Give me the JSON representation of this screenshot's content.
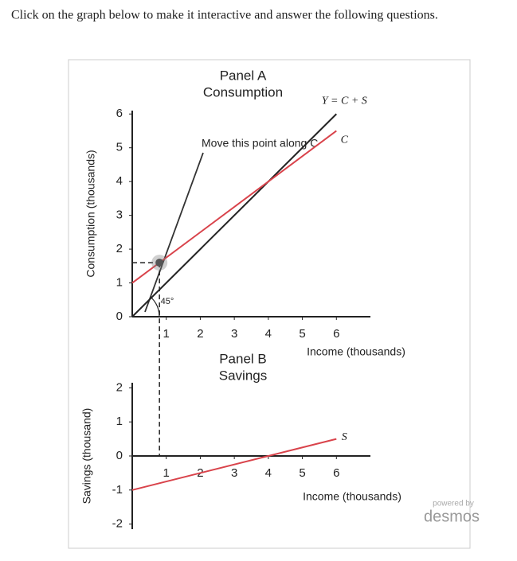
{
  "instruction": "Click on the graph below to make it interactive and answer the following questions.",
  "chart_data": [
    {
      "type": "line",
      "title": "Panel A",
      "subtitle": "Consumption",
      "x_label": "Income (thousands)",
      "y_label": "Consumption (thousands)",
      "xlim": [
        0,
        7
      ],
      "ylim": [
        0,
        6.1
      ],
      "xticks": [
        1,
        2,
        3,
        4,
        5,
        6
      ],
      "yticks": [
        0,
        1,
        2,
        3,
        4,
        5,
        6
      ],
      "x": [
        0,
        6
      ],
      "series": [
        {
          "name": "Y = C + S",
          "color": "#222222",
          "values": [
            0,
            6
          ]
        },
        {
          "name": "C",
          "color": "#d9434b",
          "values": [
            1,
            5.5
          ]
        }
      ],
      "point": {
        "x": 0.8,
        "y": 1.6
      },
      "annotation": "Move this point along C",
      "angle_label": "45°"
    },
    {
      "type": "line",
      "title": "Panel B",
      "subtitle": "Savings",
      "x_label": "Income (thousands)",
      "y_label": "Savings (thousand)",
      "xlim": [
        0,
        7
      ],
      "ylim": [
        -2.15,
        2.15
      ],
      "xticks": [
        1,
        2,
        3,
        4,
        5,
        6
      ],
      "yticks": [
        -2,
        -1,
        0,
        1,
        2
      ],
      "x": [
        0,
        6
      ],
      "series": [
        {
          "name": "S",
          "color": "#d9434b",
          "values": [
            -1,
            0.5
          ]
        }
      ]
    }
  ],
  "footer": {
    "powered_by": "powered by",
    "brand": "desmos"
  }
}
